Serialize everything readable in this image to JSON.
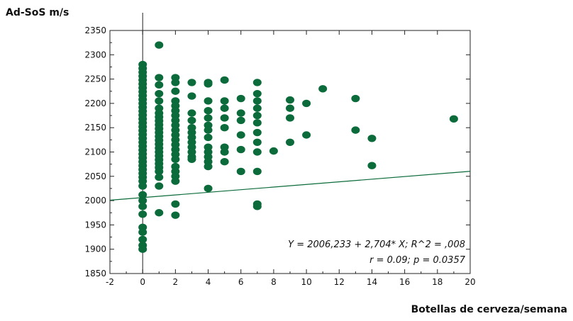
{
  "chart_data": {
    "type": "scatter",
    "ylabel": "Ad-SoS m/s",
    "xlabel": "Botellas de cerveza/semana",
    "xlim": [
      -2,
      20
    ],
    "ylim": [
      1850,
      2350
    ],
    "xticks": [
      -2,
      0,
      2,
      4,
      6,
      8,
      10,
      12,
      14,
      16,
      18,
      20
    ],
    "yticks": [
      1850,
      1900,
      1950,
      2000,
      2050,
      2100,
      2150,
      2200,
      2250,
      2300,
      2350
    ],
    "grid": false,
    "point_color": "#0b6b3a",
    "line_color": "#0b6b3a",
    "regression": {
      "intercept": 2006.233,
      "slope": 2.704
    },
    "annotations": [
      "Y = 2006,233 + 2,704* X; R^2 = ,008",
      "r = 0.09; p = 0.0357"
    ],
    "points": [
      {
        "x": 0,
        "y": 2280
      },
      {
        "x": 0,
        "y": 2272
      },
      {
        "x": 0,
        "y": 2264
      },
      {
        "x": 0,
        "y": 2256
      },
      {
        "x": 0,
        "y": 2248
      },
      {
        "x": 0,
        "y": 2240
      },
      {
        "x": 0,
        "y": 2232
      },
      {
        "x": 0,
        "y": 2224
      },
      {
        "x": 0,
        "y": 2216
      },
      {
        "x": 0,
        "y": 2208
      },
      {
        "x": 0,
        "y": 2200
      },
      {
        "x": 0,
        "y": 2192
      },
      {
        "x": 0,
        "y": 2184
      },
      {
        "x": 0,
        "y": 2176
      },
      {
        "x": 0,
        "y": 2168
      },
      {
        "x": 0,
        "y": 2160
      },
      {
        "x": 0,
        "y": 2152
      },
      {
        "x": 0,
        "y": 2144
      },
      {
        "x": 0,
        "y": 2136
      },
      {
        "x": 0,
        "y": 2128
      },
      {
        "x": 0,
        "y": 2120
      },
      {
        "x": 0,
        "y": 2112
      },
      {
        "x": 0,
        "y": 2104
      },
      {
        "x": 0,
        "y": 2096
      },
      {
        "x": 0,
        "y": 2088
      },
      {
        "x": 0,
        "y": 2080
      },
      {
        "x": 0,
        "y": 2072
      },
      {
        "x": 0,
        "y": 2064
      },
      {
        "x": 0,
        "y": 2056
      },
      {
        "x": 0,
        "y": 2048
      },
      {
        "x": 0,
        "y": 2040
      },
      {
        "x": 0,
        "y": 2030
      },
      {
        "x": 0,
        "y": 2012
      },
      {
        "x": 0,
        "y": 2000
      },
      {
        "x": 0,
        "y": 1988
      },
      {
        "x": 0,
        "y": 1972
      },
      {
        "x": 0,
        "y": 1945
      },
      {
        "x": 0,
        "y": 1935
      },
      {
        "x": 0,
        "y": 1920
      },
      {
        "x": 0,
        "y": 1908
      },
      {
        "x": 0,
        "y": 1900
      },
      {
        "x": 1,
        "y": 2320
      },
      {
        "x": 1,
        "y": 2253
      },
      {
        "x": 1,
        "y": 2238
      },
      {
        "x": 1,
        "y": 2220
      },
      {
        "x": 1,
        "y": 2205
      },
      {
        "x": 1,
        "y": 2190
      },
      {
        "x": 1,
        "y": 2180
      },
      {
        "x": 1,
        "y": 2172
      },
      {
        "x": 1,
        "y": 2164
      },
      {
        "x": 1,
        "y": 2156
      },
      {
        "x": 1,
        "y": 2148
      },
      {
        "x": 1,
        "y": 2140
      },
      {
        "x": 1,
        "y": 2132
      },
      {
        "x": 1,
        "y": 2124
      },
      {
        "x": 1,
        "y": 2116
      },
      {
        "x": 1,
        "y": 2108
      },
      {
        "x": 1,
        "y": 2100
      },
      {
        "x": 1,
        "y": 2092
      },
      {
        "x": 1,
        "y": 2084
      },
      {
        "x": 1,
        "y": 2076
      },
      {
        "x": 1,
        "y": 2068
      },
      {
        "x": 1,
        "y": 2060
      },
      {
        "x": 1,
        "y": 2048
      },
      {
        "x": 1,
        "y": 2030
      },
      {
        "x": 1,
        "y": 1975
      },
      {
        "x": 2,
        "y": 2253
      },
      {
        "x": 2,
        "y": 2243
      },
      {
        "x": 2,
        "y": 2225
      },
      {
        "x": 2,
        "y": 2205
      },
      {
        "x": 2,
        "y": 2195
      },
      {
        "x": 2,
        "y": 2185
      },
      {
        "x": 2,
        "y": 2175
      },
      {
        "x": 2,
        "y": 2165
      },
      {
        "x": 2,
        "y": 2155
      },
      {
        "x": 2,
        "y": 2145
      },
      {
        "x": 2,
        "y": 2135
      },
      {
        "x": 2,
        "y": 2125
      },
      {
        "x": 2,
        "y": 2115
      },
      {
        "x": 2,
        "y": 2105
      },
      {
        "x": 2,
        "y": 2095
      },
      {
        "x": 2,
        "y": 2085
      },
      {
        "x": 2,
        "y": 2070
      },
      {
        "x": 2,
        "y": 2060
      },
      {
        "x": 2,
        "y": 2050
      },
      {
        "x": 2,
        "y": 2040
      },
      {
        "x": 2,
        "y": 1993
      },
      {
        "x": 2,
        "y": 1970
      },
      {
        "x": 3,
        "y": 2243
      },
      {
        "x": 3,
        "y": 2215
      },
      {
        "x": 3,
        "y": 2180
      },
      {
        "x": 3,
        "y": 2165
      },
      {
        "x": 3,
        "y": 2150
      },
      {
        "x": 3,
        "y": 2140
      },
      {
        "x": 3,
        "y": 2130
      },
      {
        "x": 3,
        "y": 2120
      },
      {
        "x": 3,
        "y": 2110
      },
      {
        "x": 3,
        "y": 2100
      },
      {
        "x": 3,
        "y": 2090
      },
      {
        "x": 3,
        "y": 2085
      },
      {
        "x": 4,
        "y": 2243
      },
      {
        "x": 4,
        "y": 2240
      },
      {
        "x": 4,
        "y": 2205
      },
      {
        "x": 4,
        "y": 2185
      },
      {
        "x": 4,
        "y": 2170
      },
      {
        "x": 4,
        "y": 2155
      },
      {
        "x": 4,
        "y": 2145
      },
      {
        "x": 4,
        "y": 2130
      },
      {
        "x": 4,
        "y": 2110
      },
      {
        "x": 4,
        "y": 2100
      },
      {
        "x": 4,
        "y": 2090
      },
      {
        "x": 4,
        "y": 2080
      },
      {
        "x": 4,
        "y": 2070
      },
      {
        "x": 4,
        "y": 2025
      },
      {
        "x": 5,
        "y": 2248
      },
      {
        "x": 5,
        "y": 2205
      },
      {
        "x": 5,
        "y": 2190
      },
      {
        "x": 5,
        "y": 2170
      },
      {
        "x": 5,
        "y": 2150
      },
      {
        "x": 5,
        "y": 2110
      },
      {
        "x": 5,
        "y": 2100
      },
      {
        "x": 5,
        "y": 2080
      },
      {
        "x": 6,
        "y": 2210
      },
      {
        "x": 6,
        "y": 2180
      },
      {
        "x": 6,
        "y": 2165
      },
      {
        "x": 6,
        "y": 2135
      },
      {
        "x": 6,
        "y": 2105
      },
      {
        "x": 6,
        "y": 2060
      },
      {
        "x": 7,
        "y": 2243
      },
      {
        "x": 7,
        "y": 2220
      },
      {
        "x": 7,
        "y": 2205
      },
      {
        "x": 7,
        "y": 2190
      },
      {
        "x": 7,
        "y": 2175
      },
      {
        "x": 7,
        "y": 2160
      },
      {
        "x": 7,
        "y": 2140
      },
      {
        "x": 7,
        "y": 2120
      },
      {
        "x": 7,
        "y": 2100
      },
      {
        "x": 7,
        "y": 2060
      },
      {
        "x": 7,
        "y": 1993
      },
      {
        "x": 7,
        "y": 1988
      },
      {
        "x": 8,
        "y": 2102
      },
      {
        "x": 9,
        "y": 2207
      },
      {
        "x": 9,
        "y": 2190
      },
      {
        "x": 9,
        "y": 2170
      },
      {
        "x": 9,
        "y": 2120
      },
      {
        "x": 10,
        "y": 2200
      },
      {
        "x": 10,
        "y": 2135
      },
      {
        "x": 11,
        "y": 2230
      },
      {
        "x": 13,
        "y": 2210
      },
      {
        "x": 13,
        "y": 2145
      },
      {
        "x": 14,
        "y": 2128
      },
      {
        "x": 14,
        "y": 2072
      },
      {
        "x": 19,
        "y": 2168
      }
    ]
  }
}
